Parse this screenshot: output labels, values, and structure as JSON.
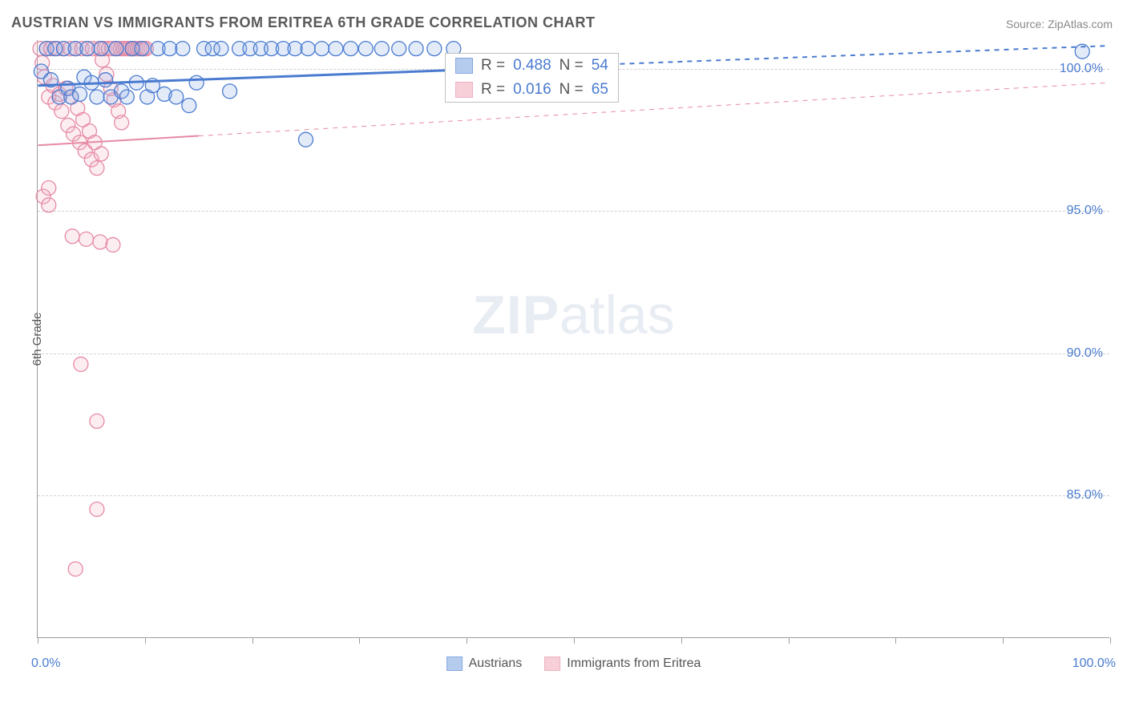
{
  "title": "AUSTRIAN VS IMMIGRANTS FROM ERITREA 6TH GRADE CORRELATION CHART",
  "source_prefix": "Source: ",
  "source_name": "ZipAtlas.com",
  "y_axis_title": "6th Grade",
  "watermark_bold": "ZIP",
  "watermark_light": "atlas",
  "chart": {
    "type": "scatter",
    "xlim": [
      0,
      100
    ],
    "ylim": [
      80,
      101
    ],
    "y_ticks": [
      85.0,
      90.0,
      95.0,
      100.0
    ],
    "y_tick_labels": [
      "85.0%",
      "90.0%",
      "95.0%",
      "100.0%"
    ],
    "x_tick_positions": [
      0,
      10,
      20,
      30,
      40,
      50,
      60,
      70,
      80,
      90,
      100
    ],
    "x_axis_label_left": "0.0%",
    "x_axis_label_right": "100.0%",
    "background_color": "#ffffff",
    "grid_color": "#d0d0d0",
    "axis_color": "#9e9e9e",
    "marker_radius": 9,
    "marker_fill_opacity": 0.25,
    "marker_stroke_width": 1.3
  },
  "series": [
    {
      "name": "Austrians",
      "color_stroke": "#4a7bd0",
      "color_fill": "#8fb1e8",
      "R": "0.488",
      "N": "54",
      "trend": {
        "x1": 0,
        "y1": 99.4,
        "x2": 100,
        "y2": 100.8,
        "solid_until_x": 40,
        "stroke_width": 3
      },
      "points": [
        [
          0.3,
          99.9
        ],
        [
          0.8,
          100.7
        ],
        [
          1.2,
          99.6
        ],
        [
          1.6,
          100.7
        ],
        [
          2.0,
          99.0
        ],
        [
          2.4,
          100.7
        ],
        [
          2.8,
          99.3
        ],
        [
          3.1,
          99.0
        ],
        [
          3.5,
          100.7
        ],
        [
          3.9,
          99.1
        ],
        [
          4.3,
          99.7
        ],
        [
          4.6,
          100.7
        ],
        [
          5.0,
          99.5
        ],
        [
          5.5,
          99.0
        ],
        [
          5.9,
          100.7
        ],
        [
          6.3,
          99.6
        ],
        [
          6.8,
          99.0
        ],
        [
          7.3,
          100.7
        ],
        [
          7.8,
          99.2
        ],
        [
          8.3,
          99.0
        ],
        [
          8.8,
          100.7
        ],
        [
          9.2,
          99.5
        ],
        [
          9.7,
          100.7
        ],
        [
          10.2,
          99.0
        ],
        [
          10.7,
          99.4
        ],
        [
          11.2,
          100.7
        ],
        [
          11.8,
          99.1
        ],
        [
          12.3,
          100.7
        ],
        [
          12.9,
          99.0
        ],
        [
          13.5,
          100.7
        ],
        [
          14.1,
          98.7
        ],
        [
          14.8,
          99.5
        ],
        [
          15.5,
          100.7
        ],
        [
          16.3,
          100.7
        ],
        [
          17.1,
          100.7
        ],
        [
          17.9,
          99.2
        ],
        [
          18.8,
          100.7
        ],
        [
          19.8,
          100.7
        ],
        [
          20.8,
          100.7
        ],
        [
          21.8,
          100.7
        ],
        [
          22.9,
          100.7
        ],
        [
          24.0,
          100.7
        ],
        [
          25.2,
          100.7
        ],
        [
          26.5,
          100.7
        ],
        [
          27.8,
          100.7
        ],
        [
          29.2,
          100.7
        ],
        [
          30.6,
          100.7
        ],
        [
          32.1,
          100.7
        ],
        [
          33.7,
          100.7
        ],
        [
          35.3,
          100.7
        ],
        [
          37.0,
          100.7
        ],
        [
          38.8,
          100.7
        ],
        [
          25.0,
          97.5
        ],
        [
          97.5,
          100.6
        ]
      ]
    },
    {
      "name": "Immigrants from Eritrea",
      "color_stroke": "#e68aa4",
      "color_fill": "#f2b6c6",
      "R": "0.016",
      "N": "65",
      "trend": {
        "x1": 0,
        "y1": 97.3,
        "x2": 100,
        "y2": 99.5,
        "solid_until_x": 15,
        "stroke_width": 2
      },
      "points": [
        [
          0.2,
          100.7
        ],
        [
          0.4,
          100.2
        ],
        [
          0.6,
          99.7
        ],
        [
          0.8,
          100.7
        ],
        [
          1.0,
          99.0
        ],
        [
          1.2,
          100.7
        ],
        [
          1.4,
          99.4
        ],
        [
          1.6,
          98.8
        ],
        [
          1.8,
          100.7
        ],
        [
          2.0,
          99.1
        ],
        [
          2.2,
          98.5
        ],
        [
          2.4,
          100.7
        ],
        [
          2.6,
          99.3
        ],
        [
          2.8,
          98.0
        ],
        [
          3.0,
          100.7
        ],
        [
          3.1,
          99.0
        ],
        [
          3.3,
          97.7
        ],
        [
          3.5,
          100.7
        ],
        [
          3.7,
          98.6
        ],
        [
          3.9,
          97.4
        ],
        [
          4.1,
          100.7
        ],
        [
          4.2,
          98.2
        ],
        [
          4.4,
          97.1
        ],
        [
          4.6,
          100.7
        ],
        [
          4.8,
          97.8
        ],
        [
          5.0,
          96.8
        ],
        [
          5.1,
          100.7
        ],
        [
          5.3,
          97.4
        ],
        [
          5.5,
          96.5
        ],
        [
          5.7,
          100.7
        ],
        [
          5.9,
          97.0
        ],
        [
          6.0,
          100.3
        ],
        [
          6.2,
          100.7
        ],
        [
          6.4,
          99.8
        ],
        [
          6.6,
          100.7
        ],
        [
          6.8,
          99.3
        ],
        [
          6.9,
          100.7
        ],
        [
          7.1,
          98.9
        ],
        [
          7.3,
          100.7
        ],
        [
          7.5,
          98.5
        ],
        [
          7.7,
          100.7
        ],
        [
          7.8,
          98.1
        ],
        [
          8.0,
          100.7
        ],
        [
          8.2,
          100.7
        ],
        [
          8.4,
          100.7
        ],
        [
          8.6,
          100.7
        ],
        [
          8.8,
          100.7
        ],
        [
          8.9,
          100.7
        ],
        [
          9.1,
          100.7
        ],
        [
          9.3,
          100.7
        ],
        [
          9.5,
          100.7
        ],
        [
          9.7,
          100.7
        ],
        [
          9.9,
          100.7
        ],
        [
          10.1,
          100.7
        ],
        [
          0.5,
          95.5
        ],
        [
          1.0,
          95.2
        ],
        [
          3.2,
          94.1
        ],
        [
          4.5,
          94.0
        ],
        [
          5.8,
          93.9
        ],
        [
          7.0,
          93.8
        ],
        [
          4.0,
          89.6
        ],
        [
          5.5,
          87.6
        ],
        [
          5.5,
          84.5
        ],
        [
          3.5,
          82.4
        ],
        [
          1.0,
          95.8
        ]
      ]
    }
  ],
  "stats_labels": {
    "R": "R =",
    "N": "N ="
  },
  "legend": {
    "items": [
      {
        "label": "Austrians",
        "series_index": 0
      },
      {
        "label": "Immigrants from Eritrea",
        "series_index": 1
      }
    ]
  }
}
